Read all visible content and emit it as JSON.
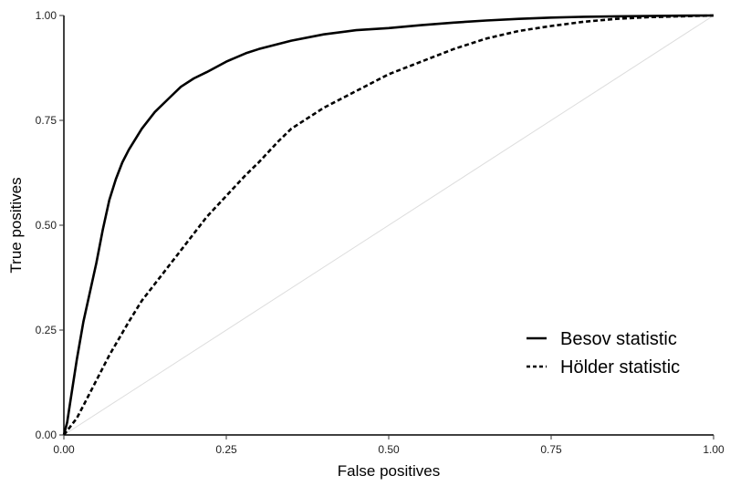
{
  "chart_data": {
    "type": "line",
    "title": "",
    "xlabel": "False positives",
    "ylabel": "True positives",
    "xlim": [
      0,
      1
    ],
    "ylim": [
      0,
      1
    ],
    "x_ticks": [
      "0.00",
      "0.25",
      "0.50",
      "0.75",
      "1.00"
    ],
    "y_ticks": [
      "0.00",
      "0.25",
      "0.50",
      "0.75",
      "1.00"
    ],
    "grid": false,
    "legend_position": "bottom-right",
    "reference_line": {
      "x": [
        0,
        1
      ],
      "y": [
        0,
        1
      ],
      "color": "#dddddd"
    },
    "series": [
      {
        "name": "Besov statistic",
        "style": "solid",
        "color": "#000000",
        "x": [
          0,
          0.005,
          0.01,
          0.02,
          0.03,
          0.04,
          0.05,
          0.06,
          0.07,
          0.08,
          0.09,
          0.1,
          0.12,
          0.14,
          0.16,
          0.18,
          0.2,
          0.22,
          0.25,
          0.28,
          0.3,
          0.35,
          0.4,
          0.45,
          0.5,
          0.55,
          0.6,
          0.65,
          0.7,
          0.75,
          0.8,
          0.85,
          0.9,
          0.95,
          1.0
        ],
        "y": [
          0,
          0.03,
          0.08,
          0.18,
          0.27,
          0.34,
          0.41,
          0.49,
          0.56,
          0.61,
          0.65,
          0.68,
          0.73,
          0.77,
          0.8,
          0.83,
          0.85,
          0.865,
          0.89,
          0.91,
          0.92,
          0.94,
          0.955,
          0.965,
          0.97,
          0.977,
          0.983,
          0.988,
          0.992,
          0.995,
          0.997,
          0.998,
          0.999,
          0.9995,
          1.0
        ]
      },
      {
        "name": "Hölder statistic",
        "style": "dashed",
        "color": "#000000",
        "x": [
          0,
          0.01,
          0.02,
          0.03,
          0.05,
          0.07,
          0.1,
          0.12,
          0.15,
          0.18,
          0.2,
          0.22,
          0.25,
          0.28,
          0.3,
          0.33,
          0.35,
          0.4,
          0.45,
          0.5,
          0.55,
          0.6,
          0.65,
          0.7,
          0.75,
          0.8,
          0.85,
          0.9,
          0.95,
          1.0
        ],
        "y": [
          0,
          0.02,
          0.04,
          0.07,
          0.13,
          0.19,
          0.27,
          0.32,
          0.38,
          0.44,
          0.48,
          0.52,
          0.57,
          0.62,
          0.65,
          0.7,
          0.73,
          0.78,
          0.82,
          0.86,
          0.89,
          0.92,
          0.945,
          0.963,
          0.975,
          0.985,
          0.992,
          0.996,
          0.998,
          1.0
        ]
      }
    ]
  }
}
